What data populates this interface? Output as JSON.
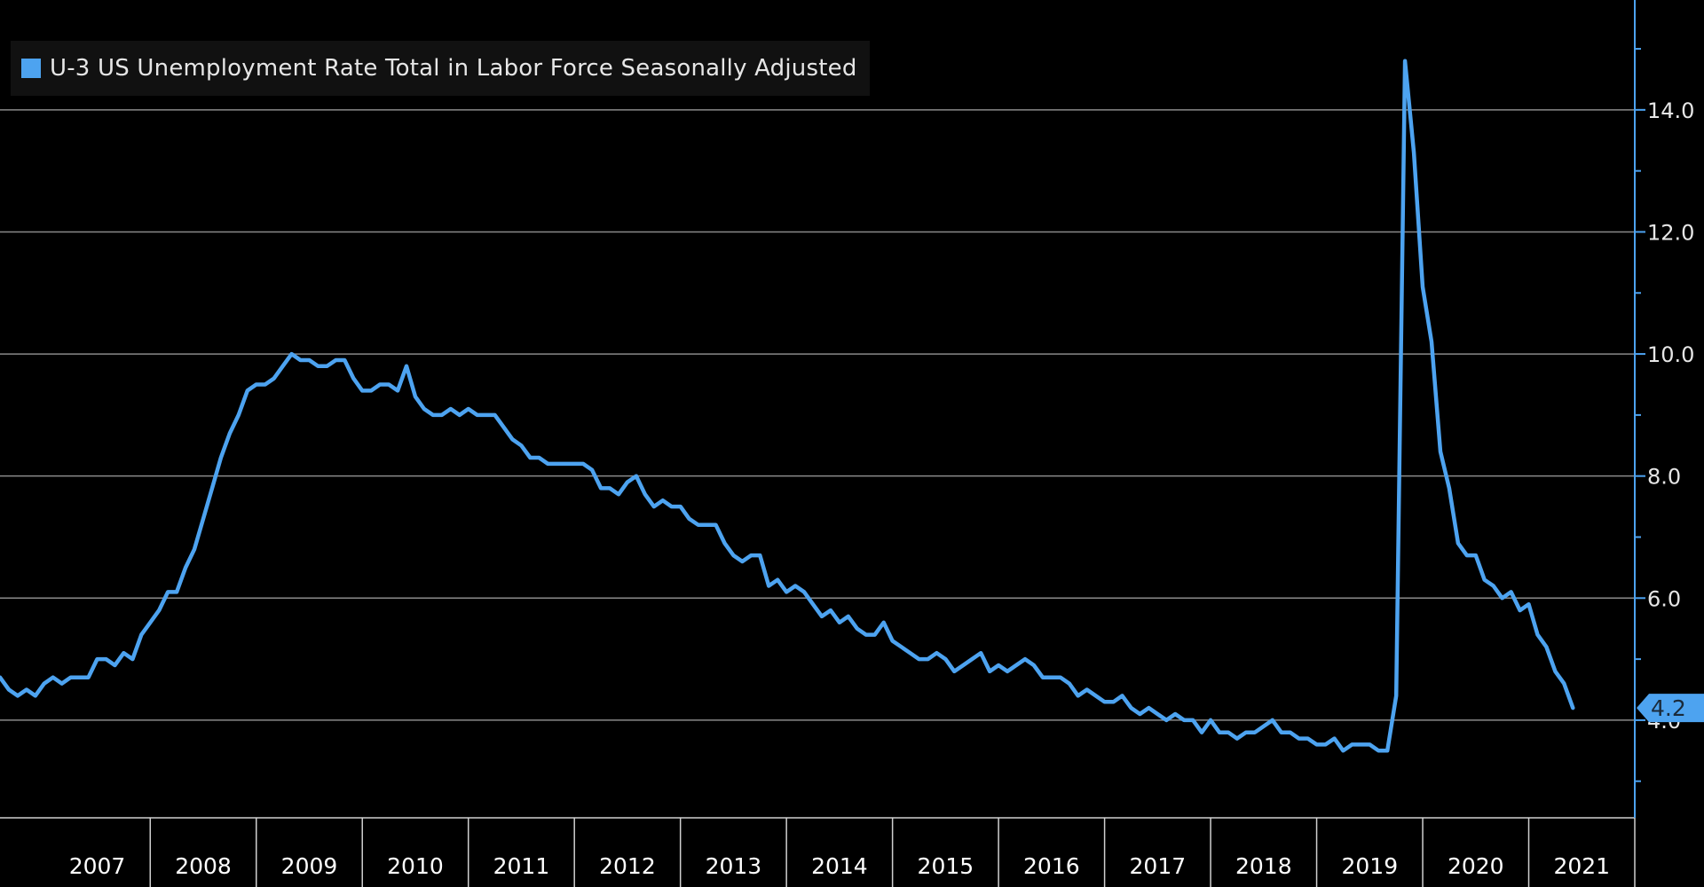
{
  "colors": {
    "background": "#000000",
    "series": "#4da3f0",
    "grid": "#8a8a8a",
    "axis": "#4da3f0",
    "text": "#e6e6e6"
  },
  "legend": {
    "label": "U-3 US Unemployment Rate Total in Labor Force Seasonally Adjusted",
    "position": "top-left"
  },
  "chart_data": {
    "type": "line",
    "title": "",
    "xlabel": "",
    "ylabel": "",
    "y_axis_side": "right",
    "grid": true,
    "xlim": [
      "2006-08",
      "2022-01"
    ],
    "ylim": [
      2.4,
      15.8
    ],
    "y_ticks": [
      4.0,
      6.0,
      8.0,
      10.0,
      12.0,
      14.0
    ],
    "y_tick_labels": [
      "4.0",
      "6.0",
      "8.0",
      "10.0",
      "12.0",
      "14.0"
    ],
    "x_tick_labels": [
      "2007",
      "2008",
      "2009",
      "2010",
      "2011",
      "2012",
      "2013",
      "2014",
      "2015",
      "2016",
      "2017",
      "2018",
      "2019",
      "2020",
      "2021"
    ],
    "last_value_label": "4.2",
    "series": [
      {
        "name": "U-3 US Unemployment Rate Total in Labor Force Seasonally Adjusted",
        "start": "2006-08",
        "frequency": "monthly",
        "values": [
          4.7,
          4.5,
          4.4,
          4.5,
          4.4,
          4.6,
          4.7,
          4.6,
          4.7,
          4.7,
          4.7,
          5.0,
          5.0,
          4.9,
          5.1,
          5.0,
          5.4,
          5.6,
          5.8,
          6.1,
          6.1,
          6.5,
          6.8,
          7.3,
          7.8,
          8.3,
          8.7,
          9.0,
          9.4,
          9.5,
          9.5,
          9.6,
          9.8,
          10.0,
          9.9,
          9.9,
          9.8,
          9.8,
          9.9,
          9.9,
          9.6,
          9.4,
          9.4,
          9.5,
          9.5,
          9.4,
          9.8,
          9.3,
          9.1,
          9.0,
          9.0,
          9.1,
          9.0,
          9.1,
          9.0,
          9.0,
          9.0,
          8.8,
          8.6,
          8.5,
          8.3,
          8.3,
          8.2,
          8.2,
          8.2,
          8.2,
          8.2,
          8.1,
          7.8,
          7.8,
          7.7,
          7.9,
          8.0,
          7.7,
          7.5,
          7.6,
          7.5,
          7.5,
          7.3,
          7.2,
          7.2,
          7.2,
          6.9,
          6.7,
          6.6,
          6.7,
          6.7,
          6.2,
          6.3,
          6.1,
          6.2,
          6.1,
          5.9,
          5.7,
          5.8,
          5.6,
          5.7,
          5.5,
          5.4,
          5.4,
          5.6,
          5.3,
          5.2,
          5.1,
          5.0,
          5.0,
          5.1,
          5.0,
          4.8,
          4.9,
          5.0,
          5.1,
          4.8,
          4.9,
          4.8,
          4.9,
          5.0,
          4.9,
          4.7,
          4.7,
          4.7,
          4.6,
          4.4,
          4.5,
          4.4,
          4.3,
          4.3,
          4.4,
          4.2,
          4.1,
          4.2,
          4.1,
          4.0,
          4.1,
          4.0,
          4.0,
          3.8,
          4.0,
          3.8,
          3.8,
          3.7,
          3.8,
          3.8,
          3.9,
          4.0,
          3.8,
          3.8,
          3.7,
          3.7,
          3.6,
          3.6,
          3.7,
          3.5,
          3.6,
          3.6,
          3.6,
          3.5,
          3.5,
          4.4,
          14.8,
          13.3,
          11.1,
          10.2,
          8.4,
          7.8,
          6.9,
          6.7,
          6.7,
          6.3,
          6.2,
          6.0,
          6.1,
          5.8,
          5.9,
          5.4,
          5.2,
          4.8,
          4.6,
          4.2
        ]
      }
    ]
  }
}
